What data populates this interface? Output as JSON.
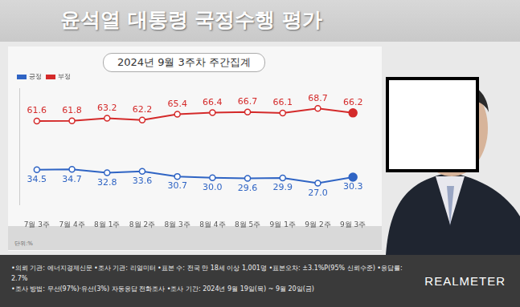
{
  "chart_data": {
    "type": "line",
    "title": "윤석열 대통령 국정수행 평가",
    "subtitle": "2024년 9월 3주차 주간집계",
    "annotations": [
      "단위:%"
    ],
    "categories": [
      "7월 3주",
      "7월 4주",
      "8월 1주",
      "8월 2주",
      "8월 3주",
      "8월 4주",
      "8월 5주",
      "9월 1주",
      "9월 2주",
      "9월 3주"
    ],
    "series": [
      {
        "name": "긍정",
        "color": "#2f64c4",
        "values": [
          34.5,
          34.7,
          32.8,
          33.6,
          30.7,
          30.0,
          29.6,
          29.9,
          27.0,
          30.3
        ],
        "value_labels": [
          "34.5",
          "34.7",
          "32.8",
          "33.6",
          "30.7",
          "30.0",
          "29.6",
          "29.9",
          "27.0",
          "30.3"
        ]
      },
      {
        "name": "부정",
        "color": "#d42a2a",
        "values": [
          61.6,
          61.8,
          63.2,
          62.2,
          65.4,
          66.4,
          66.7,
          66.1,
          68.7,
          66.2
        ]
      }
    ],
    "ylim": [
      15,
      80
    ],
    "tick_labels": "x",
    "grid": false,
    "legend": "top-left",
    "data_labels": true,
    "marker": "circle"
  },
  "footer": {
    "lines": [
      "•의뢰 기관: 에너지경제신문 •조사 기관: 리얼미터 •표본 수: 전국 만 18세 이상 1,001명 •표본오차: ±3.1%P(95% 신뢰수준) •응답률: 2.7%",
      "•조사 방법: 무선(97%)·유선(3%) 자동응답 전화조사 •조사 기간: 2024년 9월 19일(목) ~ 9월 20일(금)"
    ],
    "logo": "REALMETER"
  }
}
